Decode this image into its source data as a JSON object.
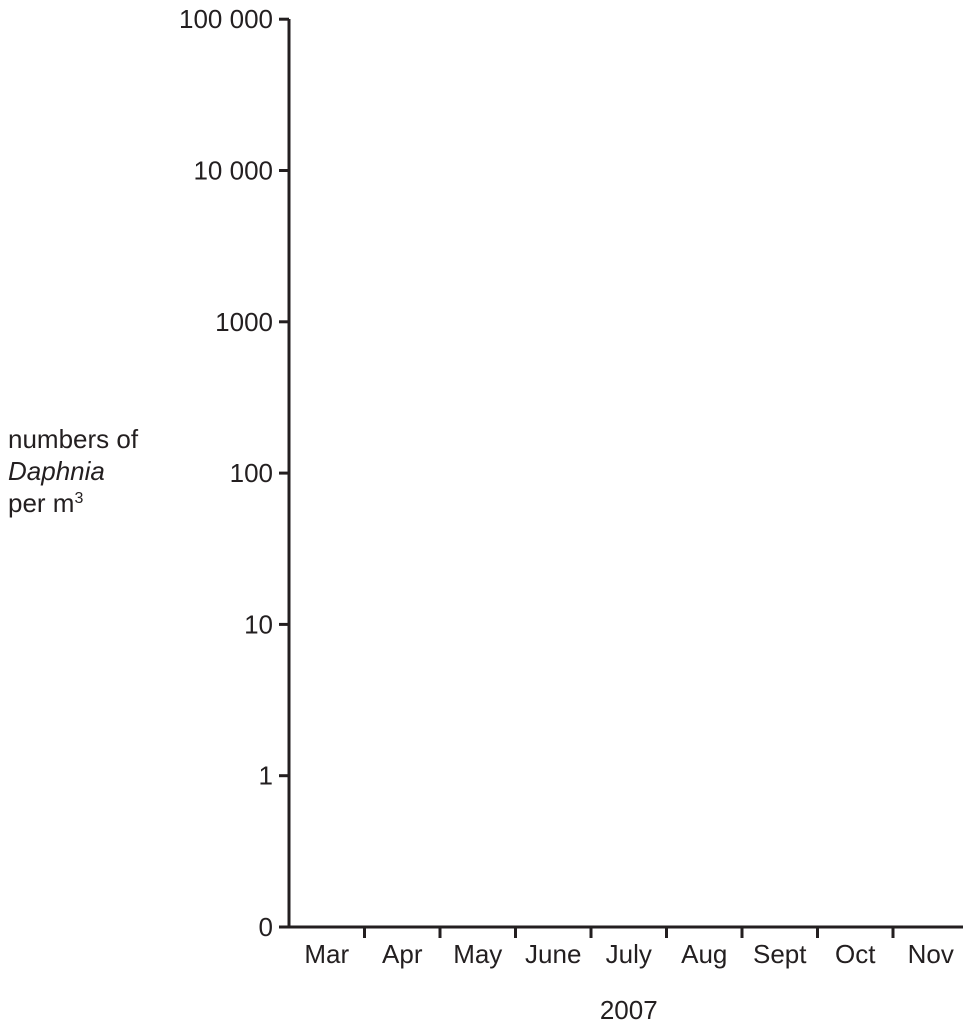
{
  "chart_data": {
    "type": "line",
    "title": "",
    "xlabel": "2007",
    "ylabel": {
      "line1": "numbers of",
      "line2": "Daphnia",
      "line3_prefix": "per m",
      "line3_sup": "3"
    },
    "y_scale": "log",
    "y_tick_labels": [
      "0",
      "1",
      "10",
      "100",
      "1000",
      "10 000",
      "100 000"
    ],
    "categories": [
      "Mar",
      "Apr",
      "May",
      "June",
      "July",
      "Aug",
      "Sept",
      "Oct",
      "Nov"
    ],
    "series": [],
    "grid": false,
    "legend": "none"
  }
}
